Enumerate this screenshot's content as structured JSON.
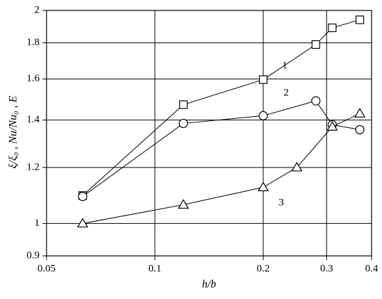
{
  "chart_data": {
    "type": "line",
    "x_label": "h/b",
    "y_label": "ξ/ξ₀ , Nu/Nu₀ , E",
    "xscale": "log",
    "yscale": "log",
    "xlim": [
      0.05,
      0.4
    ],
    "ylim": [
      0.9,
      2
    ],
    "xticks": [
      0.05,
      0.1,
      0.2,
      0.3,
      0.4
    ],
    "yticks": [
      0.9,
      1,
      1.2,
      1.4,
      1.6,
      1.8,
      2
    ],
    "grid": true,
    "series": [
      {
        "name": "1",
        "color": "#000000",
        "marker": "square",
        "x": [
          0.063,
          0.12,
          0.2,
          0.28,
          0.311,
          0.371
        ],
        "values": [
          1.095,
          1.472,
          1.597,
          1.79,
          1.89,
          1.94
        ]
      },
      {
        "name": "2",
        "color": "#000000",
        "marker": "circle",
        "x": [
          0.063,
          0.12,
          0.2,
          0.28,
          0.311,
          0.371
        ],
        "values": [
          1.092,
          1.385,
          1.42,
          1.49,
          1.379,
          1.357
        ]
      },
      {
        "name": "3",
        "color": "#000000",
        "marker": "triangle",
        "x": [
          0.063,
          0.12,
          0.2,
          0.248,
          0.311,
          0.371
        ],
        "values": [
          1.0,
          1.063,
          1.125,
          1.2,
          1.37,
          1.43
        ]
      }
    ]
  }
}
